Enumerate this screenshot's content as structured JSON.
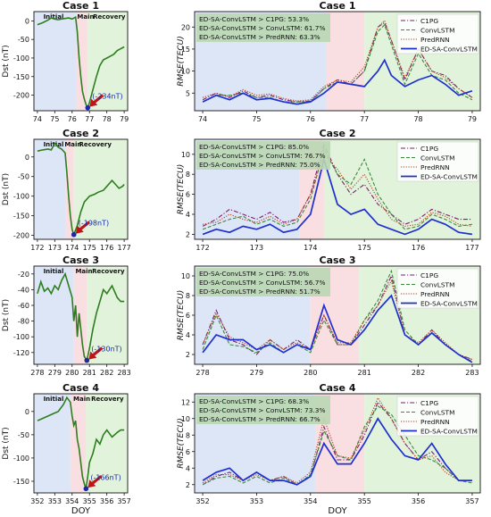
{
  "figure": {
    "xlabel": "DOY",
    "dst_ylabel": "Dst (nT)",
    "rmse_ylabel": "RMSE(TECU)",
    "phase_labels": [
      "Initial",
      "Main",
      "Recovery"
    ],
    "phase_colors": {
      "initial": "#dde6f7",
      "main": "#f9dfe1",
      "recovery": "#e2f3dc"
    },
    "legend": [
      {
        "name": "C1PG",
        "color": "#7b1f6e",
        "style": "dashdot"
      },
      {
        "name": "ConvLSTM",
        "color": "#3d8a3d",
        "style": "dashed"
      },
      {
        "name": "PredRNN",
        "color": "#b0441c",
        "style": "dotted"
      },
      {
        "name": "ED-SA-ConvLSTM",
        "color": "#1f2fcf",
        "style": "solid"
      }
    ],
    "dst_color": "#2e7d1f",
    "marker_color": "#1a2aa6",
    "arrow_color": "#c0141b",
    "comparison_box_color": "#b9d7b3"
  },
  "chart_data": [
    {
      "type": "line",
      "panel": "dst",
      "title": "Case 1",
      "xlim": [
        73.8,
        79.2
      ],
      "xticks": [
        74,
        75,
        76,
        77,
        78,
        79
      ],
      "ylim": [
        -242,
        25
      ],
      "yticks": [
        0,
        -50,
        -100,
        -150,
        -200
      ],
      "phases": [
        [
          73.8,
          76.25
        ],
        [
          76.25,
          76.9
        ],
        [
          76.9,
          79.2
        ]
      ],
      "min_label": "(-234nT)",
      "min_point": [
        76.9,
        -234
      ],
      "x": [
        74.0,
        74.3,
        74.6,
        74.8,
        75.0,
        75.2,
        75.5,
        75.8,
        76.0,
        76.2,
        76.3,
        76.4,
        76.5,
        76.6,
        76.7,
        76.8,
        76.9,
        77.0,
        77.2,
        77.4,
        77.6,
        77.8,
        78.0,
        78.2,
        78.4,
        78.6,
        78.8,
        79.0
      ],
      "y": [
        -10,
        -5,
        2,
        8,
        5,
        3,
        6,
        8,
        5,
        10,
        -30,
        -100,
        -150,
        -190,
        -210,
        -225,
        -234,
        -220,
        -185,
        -150,
        -120,
        -105,
        -100,
        -95,
        -90,
        -80,
        -75,
        -70
      ]
    },
    {
      "type": "line",
      "panel": "rmse",
      "title": "Case 1",
      "xlim": [
        73.85,
        79.15
      ],
      "xticks": [
        74,
        75,
        76,
        77,
        78,
        79
      ],
      "ylim": [
        1,
        23.5
      ],
      "yticks": [
        5,
        10,
        15,
        20
      ],
      "phases": [
        [
          73.85,
          76.3
        ],
        [
          76.3,
          77.0
        ],
        [
          77.0,
          79.15
        ]
      ],
      "comparisons": [
        "ED-SA-ConvLSTM > C1PG: 53.3%",
        "ED-SA-ConvLSTM > ConvLSTM: 61.7%",
        "ED-SA-ConvLSTM > PredRNN: 63.3%"
      ],
      "x": [
        74.0,
        74.25,
        74.5,
        74.75,
        75.0,
        75.25,
        75.5,
        75.75,
        76.0,
        76.25,
        76.5,
        76.75,
        77.0,
        77.25,
        77.375,
        77.5,
        77.75,
        78.0,
        78.25,
        78.5,
        78.75,
        79.0
      ],
      "series": [
        {
          "name": "C1PG",
          "values": [
            3.5,
            5,
            4,
            5.5,
            4,
            4.5,
            3.5,
            3,
            3.2,
            6,
            8,
            7,
            10,
            20,
            21,
            17,
            8,
            15,
            10,
            9,
            6,
            4
          ]
        },
        {
          "name": "ConvLSTM",
          "values": [
            3,
            4.5,
            4.5,
            5,
            4,
            4,
            3,
            3,
            3,
            6,
            7.5,
            7,
            10,
            19,
            20.5,
            16,
            7,
            14,
            9,
            8,
            5,
            3.5
          ]
        },
        {
          "name": "PredRNN",
          "values": [
            4,
            5,
            4.2,
            5.8,
            4.5,
            4.8,
            3.8,
            3.2,
            3.5,
            6.5,
            8,
            7.5,
            11,
            20,
            21.5,
            17,
            8.5,
            15,
            10,
            8.5,
            6,
            4
          ]
        },
        {
          "name": "ED-SA-ConvLSTM",
          "values": [
            3,
            4.5,
            3.5,
            5,
            3.5,
            3.8,
            3,
            2.5,
            3,
            5,
            7.5,
            7,
            6.5,
            10,
            12.5,
            9,
            6.5,
            8,
            9,
            7,
            4.5,
            5.5
          ]
        }
      ]
    },
    {
      "type": "line",
      "panel": "dst",
      "title": "Case 2",
      "xlim": [
        171.8,
        177.2
      ],
      "xticks": [
        172,
        173,
        174,
        175,
        176,
        177
      ],
      "ylim": [
        -210,
        45
      ],
      "yticks": [
        0,
        -50,
        -100,
        -150,
        -200
      ],
      "phases": [
        [
          171.8,
          173.6
        ],
        [
          173.6,
          174.1
        ],
        [
          174.1,
          177.2
        ]
      ],
      "min_label": "(-198nT)",
      "min_point": [
        174.1,
        -198
      ],
      "x": [
        172.0,
        172.3,
        172.6,
        172.8,
        173.0,
        173.2,
        173.4,
        173.6,
        173.7,
        173.8,
        173.9,
        174.0,
        174.1,
        174.3,
        174.5,
        174.7,
        175.0,
        175.3,
        175.5,
        175.8,
        176.0,
        176.3,
        176.5,
        176.7,
        176.9,
        177.0
      ],
      "y": [
        15,
        18,
        20,
        18,
        35,
        25,
        20,
        10,
        -40,
        -100,
        -150,
        -185,
        -198,
        -175,
        -140,
        -115,
        -100,
        -95,
        -90,
        -85,
        -75,
        -60,
        -70,
        -80,
        -75,
        -70
      ]
    },
    {
      "type": "line",
      "panel": "rmse",
      "title": "Case 2",
      "xlim": [
        171.85,
        177.15
      ],
      "xticks": [
        172,
        173,
        174,
        175,
        176,
        177
      ],
      "ylim": [
        1.5,
        11.5
      ],
      "yticks": [
        2,
        4,
        6,
        8,
        10
      ],
      "phases": [
        [
          171.85,
          173.8
        ],
        [
          173.8,
          174.25
        ],
        [
          174.25,
          177.15
        ]
      ],
      "comparisons": [
        "ED-SA-ConvLSTM > C1PG: 85.0%",
        "ED-SA-ConvLSTM > ConvLSTM: 76.7%",
        "ED-SA-ConvLSTM > PredRNN: 75.0%"
      ],
      "x": [
        172.0,
        172.25,
        172.5,
        172.75,
        173.0,
        173.25,
        173.5,
        173.75,
        174.0,
        174.25,
        174.5,
        174.75,
        175.0,
        175.25,
        175.5,
        175.75,
        176.0,
        176.25,
        176.5,
        176.75,
        177.0
      ],
      "series": [
        {
          "name": "C1PG",
          "values": [
            2.8,
            3.5,
            4.5,
            4,
            3.5,
            4.2,
            3.2,
            3.5,
            6,
            11,
            8,
            6,
            7,
            5,
            4,
            3,
            3.5,
            4.5,
            4,
            3.5,
            3.5
          ]
        },
        {
          "name": "ConvLSTM",
          "values": [
            2.5,
            3,
            3.5,
            3.8,
            3,
            3.5,
            2.8,
            3.2,
            5.5,
            10.5,
            8,
            7,
            9.5,
            6,
            4,
            2.5,
            2.8,
            4,
            3.5,
            2.8,
            3
          ]
        },
        {
          "name": "PredRNN",
          "values": [
            3,
            3.2,
            4,
            3.5,
            3.2,
            3.8,
            3,
            3.5,
            6,
            10,
            8.5,
            6.5,
            8,
            5.5,
            3.5,
            2.8,
            3,
            4.2,
            3.8,
            3,
            2.8
          ]
        },
        {
          "name": "ED-SA-ConvLSTM",
          "values": [
            2,
            2.5,
            2.2,
            2.8,
            2.5,
            3,
            2.2,
            2.5,
            4,
            9.5,
            5,
            4,
            4.5,
            3,
            2.5,
            2,
            2.5,
            3.5,
            3,
            2.2,
            2
          ]
        }
      ]
    },
    {
      "type": "line",
      "panel": "dst",
      "title": "Case 3",
      "xlim": [
        277.8,
        283.2
      ],
      "xticks": [
        278,
        279,
        280,
        281,
        282,
        283
      ],
      "ylim": [
        -135,
        -10
      ],
      "yticks": [
        -20,
        -40,
        -60,
        -80,
        -100,
        -120
      ],
      "phases": [
        [
          277.8,
          280.1
        ],
        [
          280.1,
          280.85
        ],
        [
          280.85,
          283.2
        ]
      ],
      "min_label": "(-130nT)",
      "min_point": [
        280.85,
        -130
      ],
      "x": [
        278.0,
        278.2,
        278.4,
        278.6,
        278.8,
        279.0,
        279.2,
        279.4,
        279.6,
        279.8,
        280.0,
        280.1,
        280.2,
        280.3,
        280.4,
        280.5,
        280.6,
        280.7,
        280.85,
        281.0,
        281.2,
        281.4,
        281.6,
        281.8,
        282.0,
        282.3,
        282.6,
        282.8,
        283.0
      ],
      "y": [
        -45,
        -30,
        -42,
        -38,
        -45,
        -35,
        -40,
        -28,
        -20,
        -35,
        -50,
        -80,
        -60,
        -100,
        -70,
        -90,
        -110,
        -125,
        -130,
        -115,
        -90,
        -70,
        -55,
        -40,
        -45,
        -35,
        -50,
        -55,
        -55
      ]
    },
    {
      "type": "line",
      "panel": "rmse",
      "title": "Case 3",
      "xlim": [
        277.85,
        283.15
      ],
      "xticks": [
        278,
        279,
        280,
        281,
        282,
        283
      ],
      "ylim": [
        1,
        11
      ],
      "yticks": [
        2,
        4,
        6,
        8,
        10
      ],
      "phases": [
        [
          277.85,
          280.0
        ],
        [
          280.0,
          280.9
        ],
        [
          280.9,
          283.15
        ]
      ],
      "comparisons": [
        "ED-SA-ConvLSTM > C1PG: 75.0%",
        "ED-SA-ConvLSTM > ConvLSTM: 56.7%",
        "ED-SA-ConvLSTM > PredRNN: 51.7%"
      ],
      "x": [
        278.0,
        278.25,
        278.5,
        278.75,
        279.0,
        279.25,
        279.5,
        279.75,
        280.0,
        280.25,
        280.5,
        280.75,
        281.0,
        281.25,
        281.5,
        281.75,
        282.0,
        282.25,
        282.5,
        282.75,
        283.0
      ],
      "series": [
        {
          "name": "C1PG",
          "values": [
            3,
            6.5,
            3.5,
            3,
            2,
            3.5,
            2.5,
            3.5,
            2.5,
            6,
            3,
            3,
            5,
            7,
            10,
            4,
            3,
            4.5,
            3,
            2,
            1.5
          ]
        },
        {
          "name": "ConvLSTM",
          "values": [
            2.5,
            6,
            3,
            2.8,
            2.2,
            3.2,
            2.2,
            3,
            2.2,
            5.5,
            3,
            3,
            5.5,
            7.5,
            10.5,
            4.5,
            3,
            4.2,
            3,
            2,
            1.3
          ]
        },
        {
          "name": "PredRNN",
          "values": [
            3,
            6.2,
            3.8,
            3.2,
            2.5,
            3.5,
            2.5,
            3.2,
            2.5,
            6,
            3.2,
            3.2,
            5.5,
            7,
            9.5,
            4,
            3.2,
            4.5,
            3.2,
            2,
            1.5
          ]
        },
        {
          "name": "ED-SA-ConvLSTM",
          "values": [
            2.2,
            4,
            3.5,
            3.5,
            2.5,
            3,
            2.2,
            3,
            2.5,
            7,
            3.5,
            3,
            4.5,
            6.5,
            8,
            4,
            3,
            4.2,
            3,
            2,
            1.2
          ]
        }
      ]
    },
    {
      "type": "line",
      "panel": "dst",
      "title": "Case 4",
      "xlim": [
        351.8,
        357.2
      ],
      "xticks": [
        352,
        353,
        354,
        355,
        356,
        357
      ],
      "ylim": [
        -175,
        38
      ],
      "yticks": [
        0,
        -50,
        -100,
        -150
      ],
      "phases": [
        [
          351.8,
          353.9
        ],
        [
          353.9,
          354.8
        ],
        [
          354.8,
          357.2
        ]
      ],
      "min_label": "(-166nT)",
      "min_point": [
        354.8,
        -166
      ],
      "x": [
        352.0,
        352.3,
        352.6,
        352.9,
        353.2,
        353.5,
        353.7,
        353.9,
        354.0,
        354.1,
        354.2,
        354.3,
        354.4,
        354.5,
        354.6,
        354.7,
        354.8,
        354.9,
        355.0,
        355.2,
        355.4,
        355.6,
        355.8,
        356.0,
        356.3,
        356.6,
        356.8,
        357.0
      ],
      "y": [
        -20,
        -15,
        -10,
        -5,
        0,
        15,
        30,
        20,
        -10,
        -30,
        -20,
        -60,
        -80,
        -110,
        -140,
        -155,
        -166,
        -140,
        -110,
        -90,
        -60,
        -70,
        -50,
        -40,
        -55,
        -45,
        -40,
        -40
      ]
    },
    {
      "type": "line",
      "panel": "rmse",
      "title": "Case 4",
      "xlim": [
        351.85,
        357.15
      ],
      "xticks": [
        352,
        353,
        354,
        355,
        356,
        357
      ],
      "ylim": [
        1,
        13
      ],
      "yticks": [
        2,
        4,
        6,
        8,
        10,
        12
      ],
      "phases": [
        [
          351.85,
          354.1
        ],
        [
          354.1,
          355.0
        ],
        [
          355.0,
          357.15
        ]
      ],
      "comparisons": [
        "ED-SA-ConvLSTM > C1PG: 68.3%",
        "ED-SA-ConvLSTM > ConvLSTM: 73.3%",
        "ED-SA-ConvLSTM > PredRNN: 66.7%"
      ],
      "x": [
        352.0,
        352.25,
        352.5,
        352.75,
        353.0,
        353.25,
        353.5,
        353.75,
        354.0,
        354.25,
        354.5,
        354.75,
        355.0,
        355.25,
        355.5,
        355.75,
        356.0,
        356.25,
        356.5,
        356.75,
        357.0
      ],
      "series": [
        {
          "name": "C1PG",
          "values": [
            2,
            3,
            3.5,
            2.5,
            3.5,
            2.5,
            3,
            2,
            3,
            9,
            5,
            5,
            8,
            12,
            10,
            7,
            5,
            6,
            4,
            2.5,
            2.5
          ]
        },
        {
          "name": "ConvLSTM",
          "values": [
            2,
            2.8,
            3,
            2.2,
            3,
            2.2,
            2.8,
            2,
            3.2,
            8.5,
            5.5,
            5,
            9,
            11.5,
            10.5,
            8,
            5.5,
            5,
            4,
            2.5,
            2.2
          ]
        },
        {
          "name": "PredRNN",
          "values": [
            2.2,
            3.2,
            3.2,
            2.5,
            3.2,
            2.5,
            3,
            2.2,
            3.5,
            10,
            5.5,
            5.2,
            8.5,
            12.5,
            10,
            7,
            5,
            5.5,
            3.5,
            2.5,
            2.5
          ]
        },
        {
          "name": "ED-SA-ConvLSTM",
          "values": [
            2.5,
            3.5,
            4,
            2.5,
            3.5,
            2.5,
            2.5,
            2,
            3,
            7,
            4.5,
            4.5,
            7,
            10,
            7.5,
            5.5,
            5,
            7,
            4.5,
            2.5,
            2.5
          ]
        }
      ]
    }
  ]
}
